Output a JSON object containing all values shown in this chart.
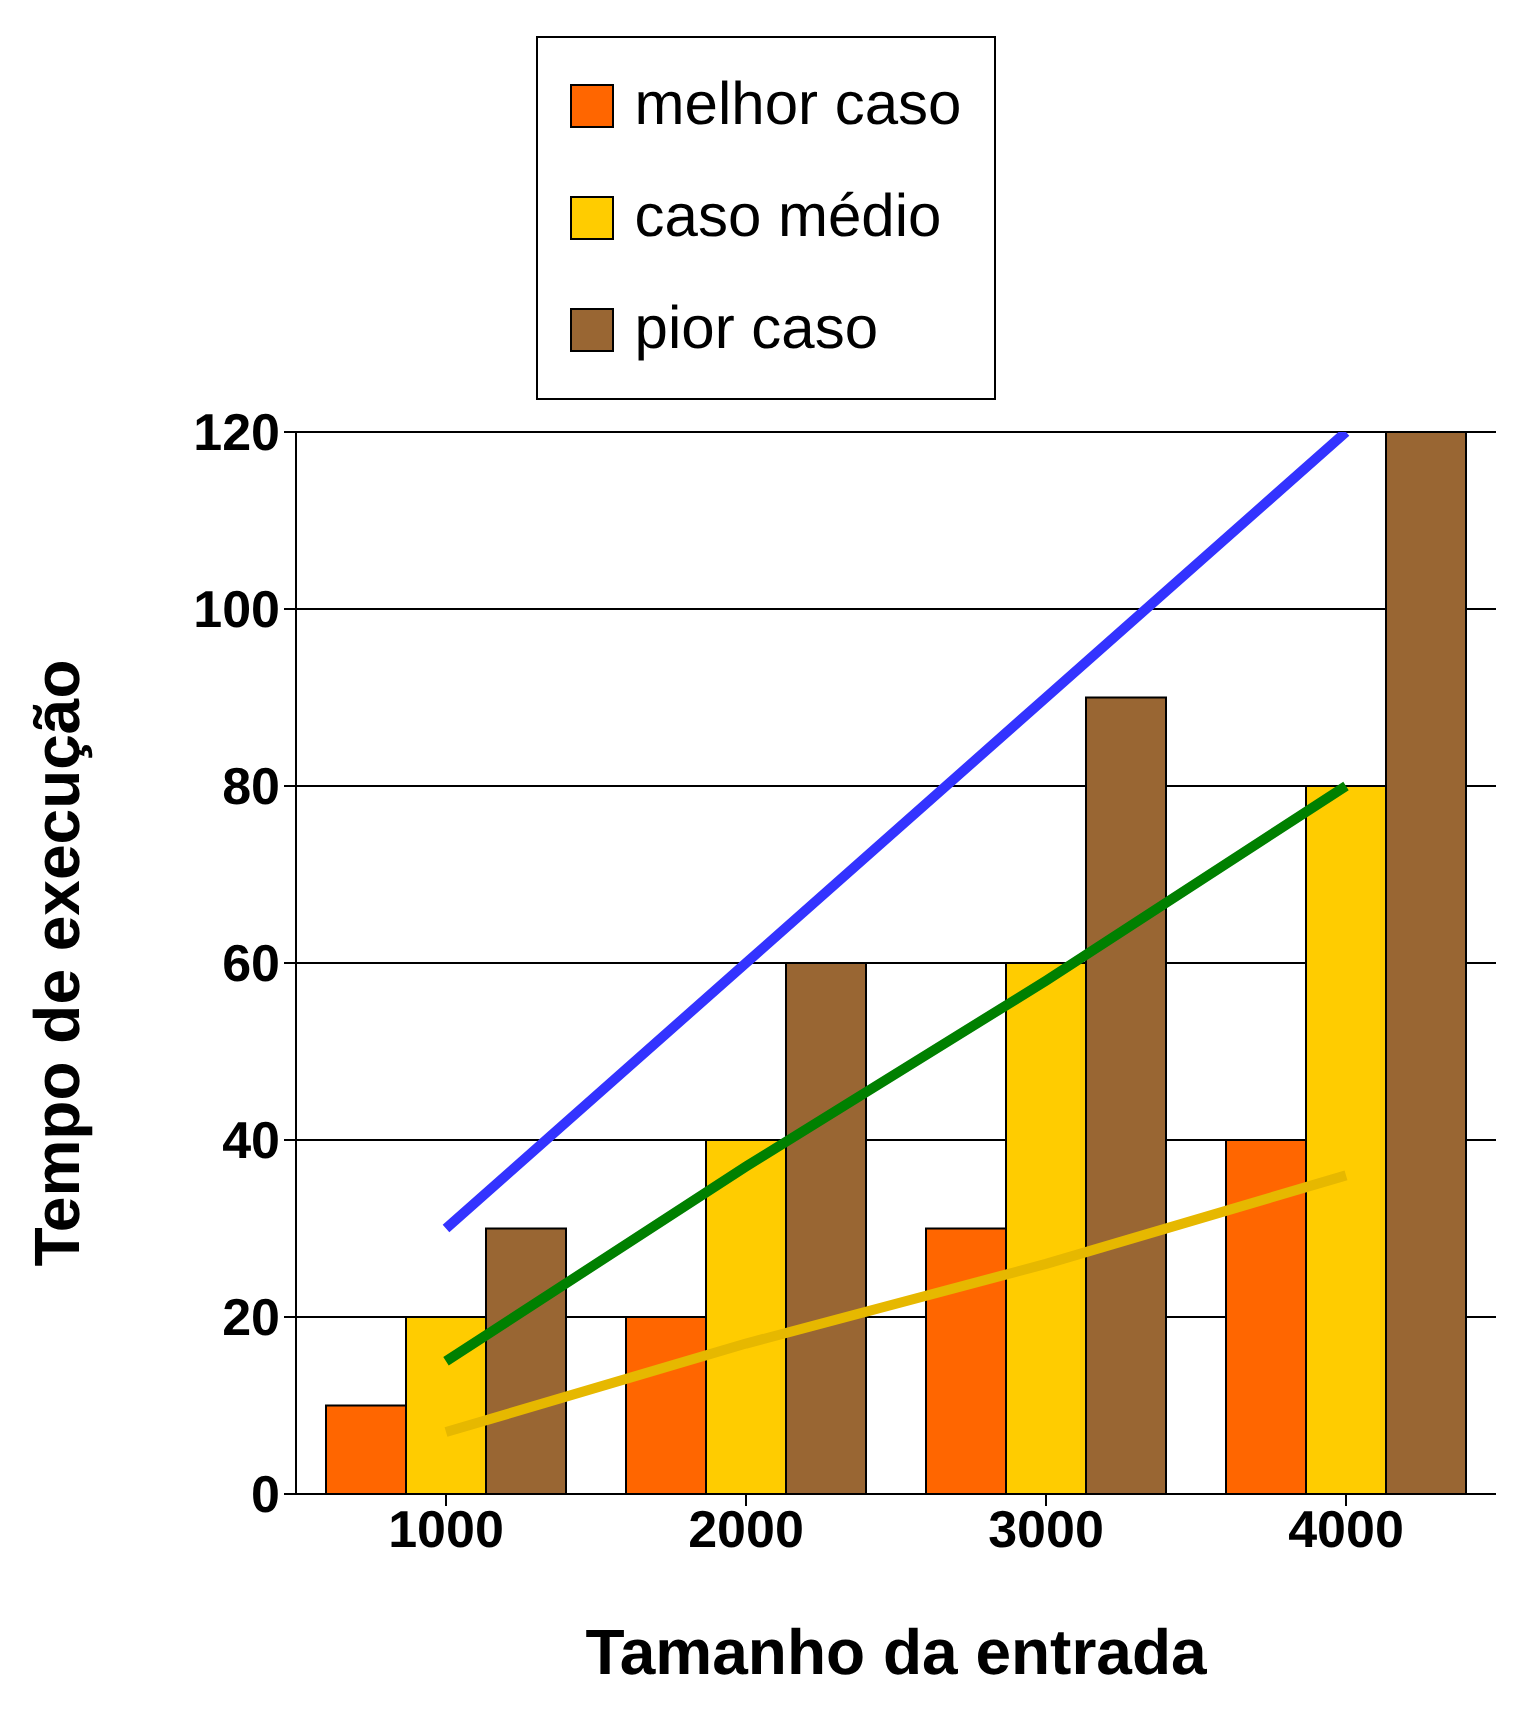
{
  "chart_data": {
    "type": "bar",
    "xlabel": "Tamanho da entrada",
    "ylabel": "Tempo de execução",
    "categories": [
      "1000",
      "2000",
      "3000",
      "4000"
    ],
    "series": [
      {
        "name": "melhor caso",
        "color": "#ff6600",
        "values": [
          10,
          20,
          30,
          40
        ]
      },
      {
        "name": "caso médio",
        "color": "#ffcc00",
        "values": [
          20,
          40,
          60,
          80
        ]
      },
      {
        "name": "pior caso",
        "color": "#996633",
        "values": [
          30,
          60,
          90,
          120
        ]
      },
      {
        "type": "line",
        "color": "#3333ff",
        "values": [
          30,
          60,
          90,
          120
        ]
      },
      {
        "type": "line",
        "color": "#008000",
        "values": [
          15,
          37,
          58,
          80
        ]
      },
      {
        "type": "line",
        "color": "#e6b800",
        "values": [
          7,
          17,
          26,
          36
        ]
      }
    ],
    "ylim": [
      0,
      120
    ],
    "yticks": [
      0,
      20,
      40,
      60,
      80,
      100,
      120
    ],
    "grid": "y",
    "legend": "top",
    "marker": "none",
    "line_style": "solid"
  }
}
